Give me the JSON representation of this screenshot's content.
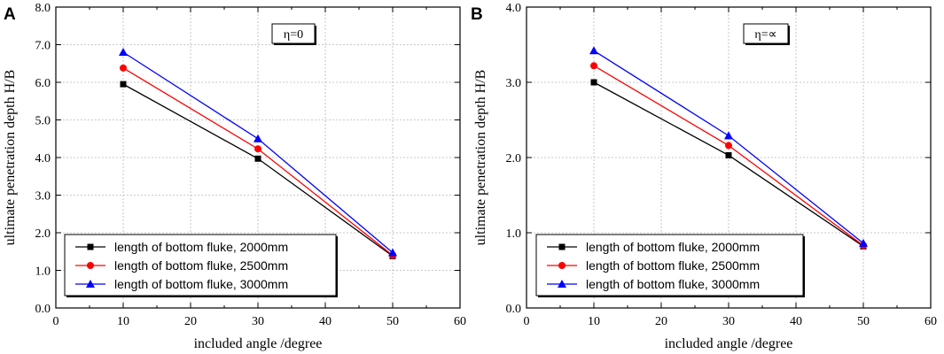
{
  "chart_data": [
    {
      "panel_label": "A",
      "type": "line",
      "annotation": "η=0",
      "xlabel": "included angle /degree",
      "ylabel": "ultimate penetration depth  H/B",
      "xlim": [
        0,
        60
      ],
      "ylim": [
        0,
        8
      ],
      "xticks": [
        0,
        10,
        20,
        30,
        40,
        50,
        60
      ],
      "yticks": [
        0.0,
        1.0,
        2.0,
        3.0,
        4.0,
        5.0,
        6.0,
        7.0,
        8.0
      ],
      "ytick_decimals": 1,
      "grid": true,
      "legend_position": "bottom-left",
      "x": [
        10,
        30,
        50
      ],
      "series": [
        {
          "name": "length of bottom fluke, 2000mm",
          "color": "#000000",
          "marker": "square",
          "values": [
            5.95,
            3.97,
            1.38
          ]
        },
        {
          "name": "length of bottom fluke, 2500mm",
          "color": "#ff0000",
          "marker": "circle",
          "values": [
            6.38,
            4.23,
            1.4
          ]
        },
        {
          "name": "length of bottom fluke, 3000mm",
          "color": "#0000ff",
          "marker": "triangle",
          "values": [
            6.8,
            4.5,
            1.47
          ]
        }
      ]
    },
    {
      "panel_label": "B",
      "type": "line",
      "annotation": "η=∝",
      "xlabel": "included angle /degree",
      "ylabel": "ultimate penetration depth  H/B",
      "xlim": [
        0,
        60
      ],
      "ylim": [
        0,
        4
      ],
      "xticks": [
        0,
        10,
        20,
        30,
        40,
        50,
        60
      ],
      "yticks": [
        0.0,
        1.0,
        2.0,
        3.0,
        4.0
      ],
      "ytick_decimals": 1,
      "grid": true,
      "legend_position": "bottom-left",
      "x": [
        10,
        30,
        50
      ],
      "series": [
        {
          "name": "length of bottom fluke, 2000mm",
          "color": "#000000",
          "marker": "square",
          "values": [
            3.0,
            2.03,
            0.82
          ]
        },
        {
          "name": "length of bottom fluke, 2500mm",
          "color": "#ff0000",
          "marker": "circle",
          "values": [
            3.22,
            2.16,
            0.83
          ]
        },
        {
          "name": "length of bottom fluke, 3000mm",
          "color": "#0000ff",
          "marker": "triangle",
          "values": [
            3.42,
            2.29,
            0.86
          ]
        }
      ]
    }
  ]
}
